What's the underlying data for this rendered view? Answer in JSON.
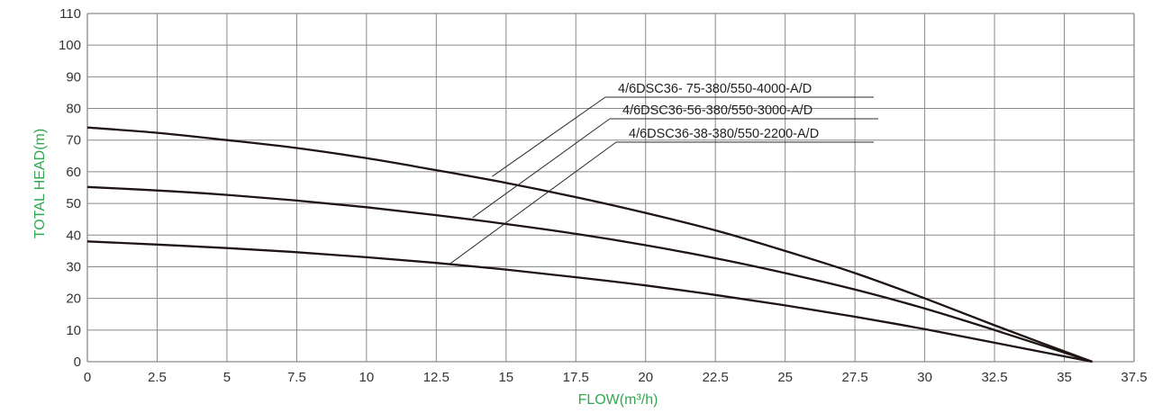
{
  "colors": {
    "axis_title": "#2fa84f",
    "grid": "#8a8a8a",
    "curve": "#1f1414",
    "leader": "#2a2a2a"
  },
  "chart_data": {
    "type": "line",
    "title": "",
    "xlabel": "FLOW(m³/h)",
    "ylabel": "TOTAL HEAD(m)",
    "xlim": [
      0,
      37.5
    ],
    "ylim": [
      0,
      110
    ],
    "xticks": [
      "0",
      "2.5",
      "5",
      "7.5",
      "10",
      "12.5",
      "15",
      "17.5",
      "20",
      "22.5",
      "25",
      "27.5",
      "30",
      "32.5",
      "35",
      "37.5"
    ],
    "yticks": [
      "0",
      "10",
      "20",
      "30",
      "40",
      "50",
      "60",
      "70",
      "80",
      "90",
      "100",
      "110"
    ],
    "grid": true,
    "series": [
      {
        "name": "4/6DSC36- 75-380/550-4000-A/D",
        "x": [
          0,
          2.5,
          5,
          7.5,
          10,
          12.5,
          15,
          17.5,
          20,
          22.5,
          25,
          27.5,
          30,
          32.5,
          36
        ],
        "y": [
          74,
          72.3,
          70,
          67.5,
          64.3,
          60.5,
          56.5,
          52,
          47,
          41.5,
          35,
          28,
          20,
          11.5,
          0
        ]
      },
      {
        "name": "4/6DSC36-56-380/550-3000-A/D",
        "x": [
          0,
          2.5,
          5,
          7.5,
          10,
          12.5,
          15,
          17.5,
          20,
          22.5,
          25,
          27.5,
          30,
          32.5,
          36
        ],
        "y": [
          55.2,
          54.1,
          52.7,
          50.9,
          48.8,
          46.3,
          43.5,
          40.4,
          36.8,
          32.7,
          28,
          22.8,
          16.8,
          10,
          0
        ]
      },
      {
        "name": "4/6DSC36-38-380/550-2200-A/D",
        "x": [
          0,
          2.5,
          5,
          7.5,
          10,
          12.5,
          15,
          17.5,
          20,
          22.5,
          25,
          27.5,
          30,
          32.5,
          36
        ],
        "y": [
          38,
          37,
          35.9,
          34.6,
          33,
          31.2,
          29.1,
          26.7,
          24.1,
          21.1,
          17.8,
          14.2,
          10.3,
          6,
          0
        ]
      }
    ]
  }
}
